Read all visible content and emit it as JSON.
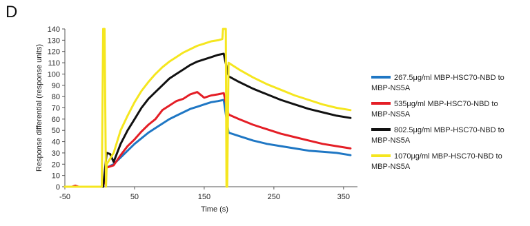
{
  "panel_label": "D",
  "chart_data": {
    "type": "line",
    "title": "",
    "xlabel": "Time (s)",
    "ylabel": "Response differential (response units)",
    "xlim": [
      -50,
      370
    ],
    "ylim": [
      0,
      140
    ],
    "x_ticks": [
      -50,
      50,
      150,
      250,
      350
    ],
    "y_ticks": [
      0,
      10,
      20,
      30,
      40,
      50,
      60,
      70,
      80,
      90,
      100,
      110,
      120,
      130,
      140
    ],
    "grid": false,
    "legend_position": "right",
    "series": [
      {
        "name": "267.5μg/ml MBP-HSC70-NBD to MBP-NS5A",
        "color": "#1f77c4",
        "points": [
          [
            -50,
            0
          ],
          [
            -40,
            0
          ],
          [
            -30,
            0
          ],
          [
            -20,
            0
          ],
          [
            -10,
            0
          ],
          [
            0,
            0
          ],
          [
            5,
            0
          ],
          [
            10,
            17
          ],
          [
            20,
            20
          ],
          [
            30,
            26
          ],
          [
            40,
            32
          ],
          [
            50,
            38
          ],
          [
            60,
            43
          ],
          [
            70,
            48
          ],
          [
            80,
            52
          ],
          [
            90,
            56
          ],
          [
            100,
            60
          ],
          [
            110,
            63
          ],
          [
            120,
            66
          ],
          [
            130,
            69
          ],
          [
            140,
            71
          ],
          [
            150,
            73
          ],
          [
            160,
            75
          ],
          [
            170,
            76
          ],
          [
            178,
            77
          ],
          [
            185,
            48
          ],
          [
            200,
            45
          ],
          [
            220,
            41
          ],
          [
            240,
            38
          ],
          [
            260,
            36
          ],
          [
            280,
            34
          ],
          [
            300,
            32
          ],
          [
            320,
            31
          ],
          [
            340,
            30
          ],
          [
            360,
            28
          ]
        ]
      },
      {
        "name": "535μg/ml MBP-HSC70-NBD to MBP-NS5A",
        "color": "#e41e26",
        "points": [
          [
            -50,
            0
          ],
          [
            -40,
            0
          ],
          [
            -35,
            1
          ],
          [
            -30,
            0
          ],
          [
            -20,
            0
          ],
          [
            -10,
            0
          ],
          [
            0,
            0
          ],
          [
            5,
            0
          ],
          [
            10,
            17
          ],
          [
            20,
            19
          ],
          [
            30,
            28
          ],
          [
            40,
            36
          ],
          [
            50,
            42
          ],
          [
            60,
            49
          ],
          [
            70,
            55
          ],
          [
            80,
            60
          ],
          [
            90,
            68
          ],
          [
            100,
            72
          ],
          [
            110,
            76
          ],
          [
            120,
            78
          ],
          [
            130,
            82
          ],
          [
            140,
            84
          ],
          [
            150,
            79
          ],
          [
            160,
            81
          ],
          [
            170,
            82
          ],
          [
            178,
            83
          ],
          [
            185,
            64
          ],
          [
            200,
            60
          ],
          [
            220,
            55
          ],
          [
            240,
            51
          ],
          [
            260,
            47
          ],
          [
            280,
            44
          ],
          [
            300,
            41
          ],
          [
            320,
            38
          ],
          [
            340,
            36
          ],
          [
            360,
            34
          ]
        ]
      },
      {
        "name": "802.5μg/ml MBP-HSC70-NBD to MBP-NS5A",
        "color": "#111111",
        "points": [
          [
            -50,
            0
          ],
          [
            -40,
            0
          ],
          [
            -30,
            0
          ],
          [
            -20,
            0
          ],
          [
            -10,
            0
          ],
          [
            0,
            0
          ],
          [
            5,
            0
          ],
          [
            10,
            30
          ],
          [
            15,
            29
          ],
          [
            20,
            22
          ],
          [
            30,
            38
          ],
          [
            40,
            50
          ],
          [
            50,
            60
          ],
          [
            60,
            70
          ],
          [
            70,
            78
          ],
          [
            80,
            84
          ],
          [
            90,
            90
          ],
          [
            100,
            96
          ],
          [
            110,
            100
          ],
          [
            120,
            104
          ],
          [
            130,
            108
          ],
          [
            140,
            111
          ],
          [
            150,
            113
          ],
          [
            160,
            115
          ],
          [
            170,
            117
          ],
          [
            178,
            118
          ],
          [
            185,
            98
          ],
          [
            200,
            93
          ],
          [
            220,
            87
          ],
          [
            240,
            82
          ],
          [
            260,
            77
          ],
          [
            280,
            73
          ],
          [
            300,
            69
          ],
          [
            320,
            66
          ],
          [
            340,
            63
          ],
          [
            360,
            61
          ]
        ]
      },
      {
        "name": "1070μg/ml MBP-HSC70-NBD to MBP-NS5A",
        "color": "#f5e61f",
        "points": [
          [
            -50,
            0
          ],
          [
            -40,
            0
          ],
          [
            -30,
            0
          ],
          [
            -20,
            0
          ],
          [
            -10,
            0
          ],
          [
            0,
            0
          ],
          [
            3,
            0
          ],
          [
            5,
            140
          ],
          [
            7,
            140
          ],
          [
            9,
            0
          ],
          [
            10,
            20
          ],
          [
            20,
            30
          ],
          [
            30,
            50
          ],
          [
            40,
            63
          ],
          [
            50,
            75
          ],
          [
            60,
            85
          ],
          [
            70,
            93
          ],
          [
            80,
            100
          ],
          [
            90,
            106
          ],
          [
            100,
            111
          ],
          [
            110,
            115
          ],
          [
            120,
            119
          ],
          [
            130,
            122
          ],
          [
            140,
            125
          ],
          [
            150,
            127
          ],
          [
            160,
            129
          ],
          [
            170,
            130
          ],
          [
            176,
            131
          ],
          [
            177,
            140
          ],
          [
            181,
            140
          ],
          [
            182,
            0
          ],
          [
            183,
            0
          ],
          [
            185,
            110
          ],
          [
            200,
            104
          ],
          [
            220,
            97
          ],
          [
            240,
            91
          ],
          [
            260,
            86
          ],
          [
            280,
            81
          ],
          [
            300,
            77
          ],
          [
            320,
            73
          ],
          [
            340,
            70
          ],
          [
            360,
            68
          ]
        ]
      }
    ]
  }
}
